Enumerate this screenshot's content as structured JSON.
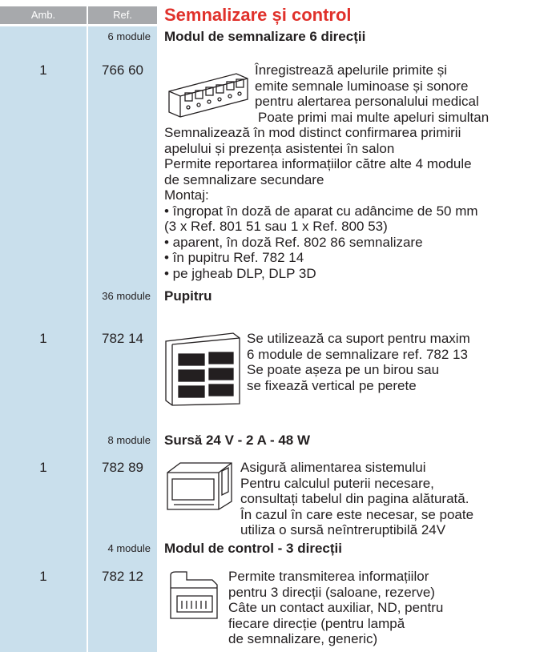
{
  "header": {
    "amb": "Amb.",
    "ref": "Ref.",
    "title": "Semnalizare și control"
  },
  "products": [
    {
      "module": "6 module",
      "amb": "1",
      "ref": "766 60",
      "name": "Modul de semnalizare 6 direcții",
      "lines": [
        "Înregistrează apelurile primite și",
        "emite semnale luminoase și sonore",
        "pentru alertarea personalului medical",
        "Poate primi mai multe apeluri simultan",
        "Semnalizează în mod distinct confirmarea primirii",
        "apelului și prezența asistentei în salon",
        "Permite reportarea informațiilor către alte 4 module",
        "de semnalizare secundare",
        "Montaj:",
        "• îngropat în doză de aparat cu adâncime de 50 mm",
        "(3 x Ref. 801 51 sau 1 x Ref. 800 53)",
        "• aparent, în doză  Ref. 802 86 semnalizare",
        "• în pupitru  Ref. 782 14",
        "• pe jgheab  DLP, DLP 3D"
      ]
    },
    {
      "module": "36 module",
      "amb": "1",
      "ref": "782 14",
      "name": "Pupitru",
      "lines": [
        "Se utilizează ca suport pentru maxim",
        "6 module de semnalizare ref. 782 13",
        "Se poate așeza pe un birou sau",
        "se fixează vertical pe perete"
      ]
    },
    {
      "module": "8 module",
      "amb": "1",
      "ref": "782 89",
      "name": "Sursă 24 V - 2 A - 48 W",
      "lines": [
        "Asigură alimentarea sistemului",
        "Pentru calculul puterii necesare,",
        "consultați tabelul din pagina alăturată.",
        "În cazul în care este necesar, se poate",
        "utiliza o sursă neîntreruptibilă 24V"
      ]
    },
    {
      "module": "4 module",
      "amb": "1",
      "ref": "782 12",
      "name": "Modul de control - 3 direcții",
      "lines": [
        "Permite transmiterea informațiilor",
        "pentru 3 direcții (saloane, rezerve)",
        "Câte un contact auxiliar, ND, pentru",
        "fiecare direcție (pentru lampă",
        "de semnalizare, generic)"
      ]
    }
  ]
}
